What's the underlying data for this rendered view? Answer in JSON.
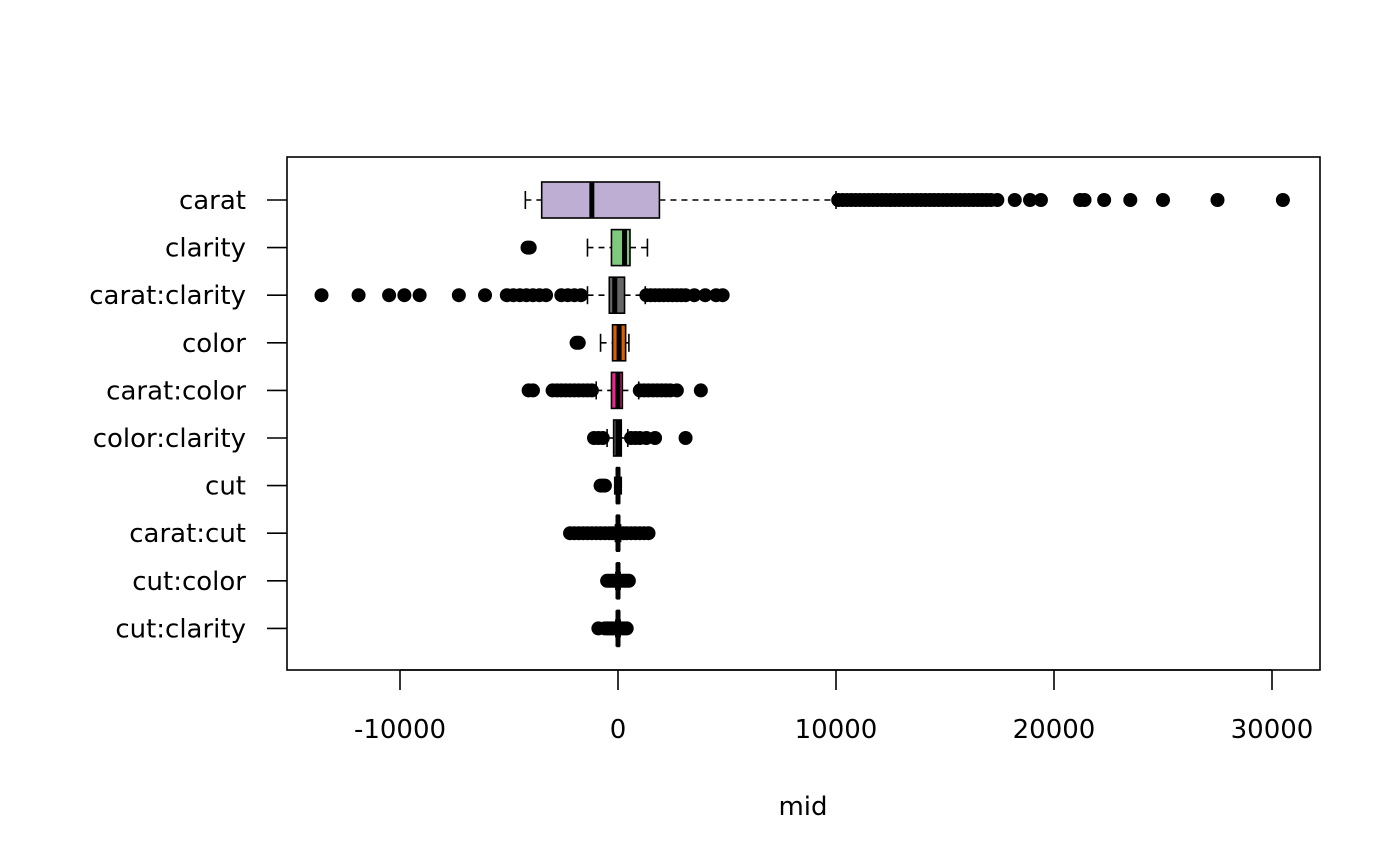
{
  "chart_data": {
    "type": "boxplot",
    "orientation": "horizontal",
    "title": "",
    "xlabel": "mid",
    "ylabel": "",
    "xlim": [
      -15300,
      32300
    ],
    "xticks": [
      -10000,
      0,
      10000,
      20000,
      30000
    ],
    "xtick_labels": [
      "-10000",
      "0",
      "10000",
      "20000",
      "30000"
    ],
    "grid": false,
    "legend": "none",
    "series": [
      {
        "name": "carat",
        "color": "#beaed4",
        "whisker_low": -4250,
        "q1": -3500,
        "median": -1200,
        "q3": 1900,
        "whisker_high": 10000,
        "outliers": [
          10100,
          10300,
          10500,
          10700,
          10900,
          11100,
          11300,
          11500,
          11700,
          11900,
          12100,
          12300,
          12500,
          12700,
          12900,
          13100,
          13300,
          13500,
          13700,
          13900,
          14100,
          14300,
          14500,
          14700,
          14900,
          15100,
          15300,
          15500,
          15700,
          15900,
          16100,
          16300,
          16500,
          16700,
          16900,
          17100,
          17400,
          18200,
          18900,
          19400,
          21200,
          21400,
          22300,
          23500,
          25000,
          27500,
          30500
        ]
      },
      {
        "name": "clarity",
        "color": "#7fc97f",
        "whisker_low": -1400,
        "q1": -300,
        "median": 300,
        "q3": 550,
        "whisker_high": 1350,
        "outliers": [
          -4150,
          -4050
        ]
      },
      {
        "name": "carat:clarity",
        "color": "#666666",
        "whisker_low": -1400,
        "q1": -400,
        "median": -150,
        "q3": 300,
        "whisker_high": 1250,
        "outliers": [
          -13600,
          -11900,
          -10500,
          -9800,
          -9100,
          -7300,
          -6100,
          -5100,
          -4800,
          -4500,
          -4200,
          -3900,
          -3600,
          -3300,
          -2600,
          -2300,
          -2000,
          -1700,
          1300,
          1500,
          1700,
          1900,
          2100,
          2300,
          2500,
          2700,
          2900,
          3100,
          3500,
          4000,
          4500,
          4800
        ]
      },
      {
        "name": "color",
        "color": "#d95f02",
        "whisker_low": -800,
        "q1": -250,
        "median": 50,
        "q3": 350,
        "whisker_high": 500,
        "outliers": [
          -1900,
          -1800
        ]
      },
      {
        "name": "carat:color",
        "color": "#e7298a",
        "whisker_low": -1000,
        "q1": -300,
        "median": 0,
        "q3": 200,
        "whisker_high": 950,
        "outliers": [
          -4100,
          -3900,
          -3000,
          -2800,
          -2600,
          -2400,
          -2200,
          -2000,
          -1800,
          -1600,
          -1400,
          -1200,
          1000,
          1200,
          1400,
          1600,
          1800,
          2000,
          2200,
          2400,
          2700,
          3800
        ]
      },
      {
        "name": "color:clarity",
        "color": "#666666",
        "whisker_low": -500,
        "q1": -200,
        "median": 0,
        "q3": 150,
        "whisker_high": 450,
        "outliers": [
          -1100,
          -900,
          -700,
          600,
          800,
          1000,
          1300,
          1700,
          3100
        ]
      },
      {
        "name": "cut",
        "color": "#666666",
        "whisker_low": -150,
        "q1": -60,
        "median": 0,
        "q3": 60,
        "whisker_high": 150,
        "outliers": [
          -800,
          -700,
          -600
        ]
      },
      {
        "name": "carat:cut",
        "color": "#666666",
        "whisker_low": -120,
        "q1": -50,
        "median": 0,
        "q3": 50,
        "whisker_high": 120,
        "outliers": [
          -2200,
          -2000,
          -1800,
          -1600,
          -1400,
          -1200,
          -1000,
          -800,
          -600,
          -400,
          -250,
          250,
          400,
          600,
          800,
          1000,
          1200,
          1400
        ]
      },
      {
        "name": "cut:color",
        "color": "#666666",
        "whisker_low": -100,
        "q1": -40,
        "median": 0,
        "q3": 40,
        "whisker_high": 100,
        "outliers": [
          -500,
          -400,
          -300,
          -200,
          200,
          300,
          400,
          500
        ]
      },
      {
        "name": "cut:clarity",
        "color": "#666666",
        "whisker_low": -100,
        "q1": -40,
        "median": 0,
        "q3": 40,
        "whisker_high": 100,
        "outliers": [
          -900,
          -600,
          -500,
          -400,
          -300,
          -200,
          200,
          300,
          400
        ]
      }
    ]
  }
}
